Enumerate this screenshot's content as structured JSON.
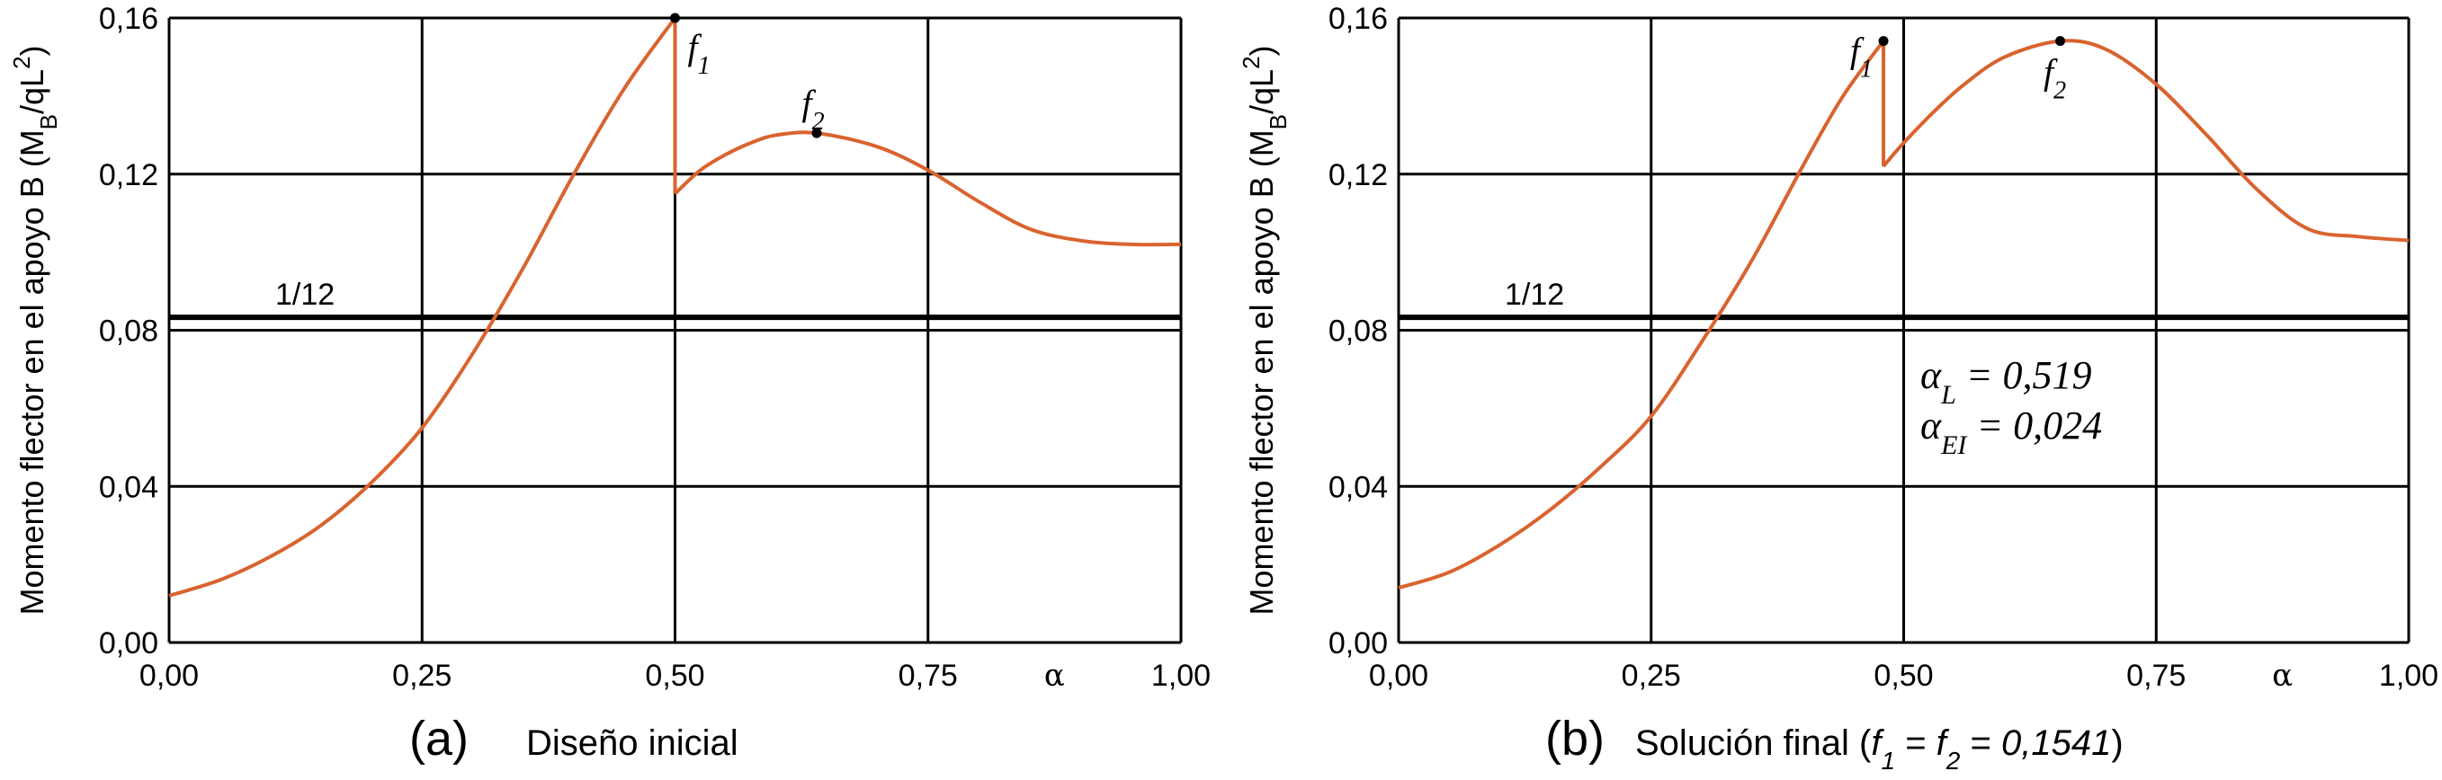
{
  "chart_data": [
    {
      "panel": "a",
      "type": "line",
      "caption_letter": "(a)",
      "caption": "Diseño inicial",
      "ylabel": "Momento flector en el apoyo B (M",
      "ylabel_sub": "B",
      "ylabel_tail": "/qL",
      "ylabel_sup": "2",
      "ylabel_end": ")",
      "xlabel": "α",
      "xlim": [
        0,
        1
      ],
      "ylim": [
        0,
        0.16
      ],
      "xticks": [
        "0,00",
        "0,25",
        "0,50",
        "0,75",
        "1,00"
      ],
      "xtick_values": [
        0,
        0.25,
        0.5,
        0.75,
        1.0
      ],
      "yticks": [
        "0,00",
        "0,04",
        "0,08",
        "0,12",
        "0,16"
      ],
      "ytick_values": [
        0,
        0.04,
        0.08,
        0.12,
        0.16
      ],
      "grid": true,
      "reference_line": {
        "label": "1/12",
        "value": 0.0833
      },
      "series_color": "#d9632f",
      "series": [
        {
          "segment": "left",
          "x": [
            0.0,
            0.05,
            0.1,
            0.15,
            0.2,
            0.25,
            0.3,
            0.35,
            0.4,
            0.45,
            0.5
          ],
          "y": [
            0.012,
            0.016,
            0.022,
            0.03,
            0.041,
            0.055,
            0.074,
            0.096,
            0.12,
            0.142,
            0.16
          ]
        },
        {
          "segment": "right",
          "x": [
            0.5,
            0.525,
            0.55,
            0.575,
            0.6,
            0.64,
            0.7,
            0.75,
            0.8,
            0.85,
            0.9,
            0.95,
            1.0
          ],
          "y": [
            0.115,
            0.121,
            0.125,
            0.128,
            0.13,
            0.1305,
            0.127,
            0.121,
            0.113,
            0.106,
            0.103,
            0.102,
            0.102
          ]
        }
      ],
      "points": [
        {
          "name": "f",
          "sub": "1",
          "x": 0.5,
          "y": 0.16,
          "label_side": "right"
        },
        {
          "name": "f",
          "sub": "2",
          "x": 0.64,
          "y": 0.1305,
          "label_side": "above"
        }
      ]
    },
    {
      "panel": "b",
      "type": "line",
      "caption_letter": "(b)",
      "caption": "Solución final (",
      "caption_f1": "f",
      "caption_f1_sub": "1",
      "caption_eq1": " = ",
      "caption_f2": "f",
      "caption_f2_sub": "2",
      "caption_eq2": " = ",
      "caption_value": "0,1541",
      "caption_end": ")",
      "ylabel": "Momento flector en el apoyo B (M",
      "ylabel_sub": "B",
      "ylabel_tail": "/qL",
      "ylabel_sup": "2",
      "ylabel_end": ")",
      "xlabel": "α",
      "xlim": [
        0,
        1
      ],
      "ylim": [
        0,
        0.16
      ],
      "xticks": [
        "0,00",
        "0,25",
        "0,50",
        "0,75",
        "1,00"
      ],
      "xtick_values": [
        0,
        0.25,
        0.5,
        0.75,
        1.0
      ],
      "yticks": [
        "0,00",
        "0,04",
        "0,08",
        "0,12",
        "0,16"
      ],
      "ytick_values": [
        0,
        0.04,
        0.08,
        0.12,
        0.16
      ],
      "grid": true,
      "reference_line": {
        "label": "1/12",
        "value": 0.0833
      },
      "annotation": [
        {
          "sym": "α",
          "sub": "L",
          "text": " = 0,519"
        },
        {
          "sym": "α",
          "sub": "EI",
          "text": " = 0,024"
        }
      ],
      "series_color": "#d9632f",
      "series": [
        {
          "segment": "left",
          "x": [
            0.0,
            0.05,
            0.1,
            0.15,
            0.2,
            0.25,
            0.3,
            0.35,
            0.4,
            0.44,
            0.48
          ],
          "y": [
            0.014,
            0.018,
            0.025,
            0.034,
            0.045,
            0.058,
            0.077,
            0.098,
            0.122,
            0.14,
            0.1541
          ]
        },
        {
          "segment": "right",
          "x": [
            0.48,
            0.5,
            0.53,
            0.56,
            0.6,
            0.655,
            0.7,
            0.75,
            0.8,
            0.85,
            0.9,
            0.95,
            1.0
          ],
          "y": [
            0.122,
            0.128,
            0.136,
            0.143,
            0.15,
            0.1541,
            0.152,
            0.143,
            0.13,
            0.116,
            0.106,
            0.104,
            0.103
          ]
        }
      ],
      "points": [
        {
          "name": "f",
          "sub": "1",
          "x": 0.48,
          "y": 0.1541,
          "label_side": "left"
        },
        {
          "name": "f",
          "sub": "2",
          "x": 0.655,
          "y": 0.1541,
          "label_side": "below"
        }
      ]
    }
  ]
}
